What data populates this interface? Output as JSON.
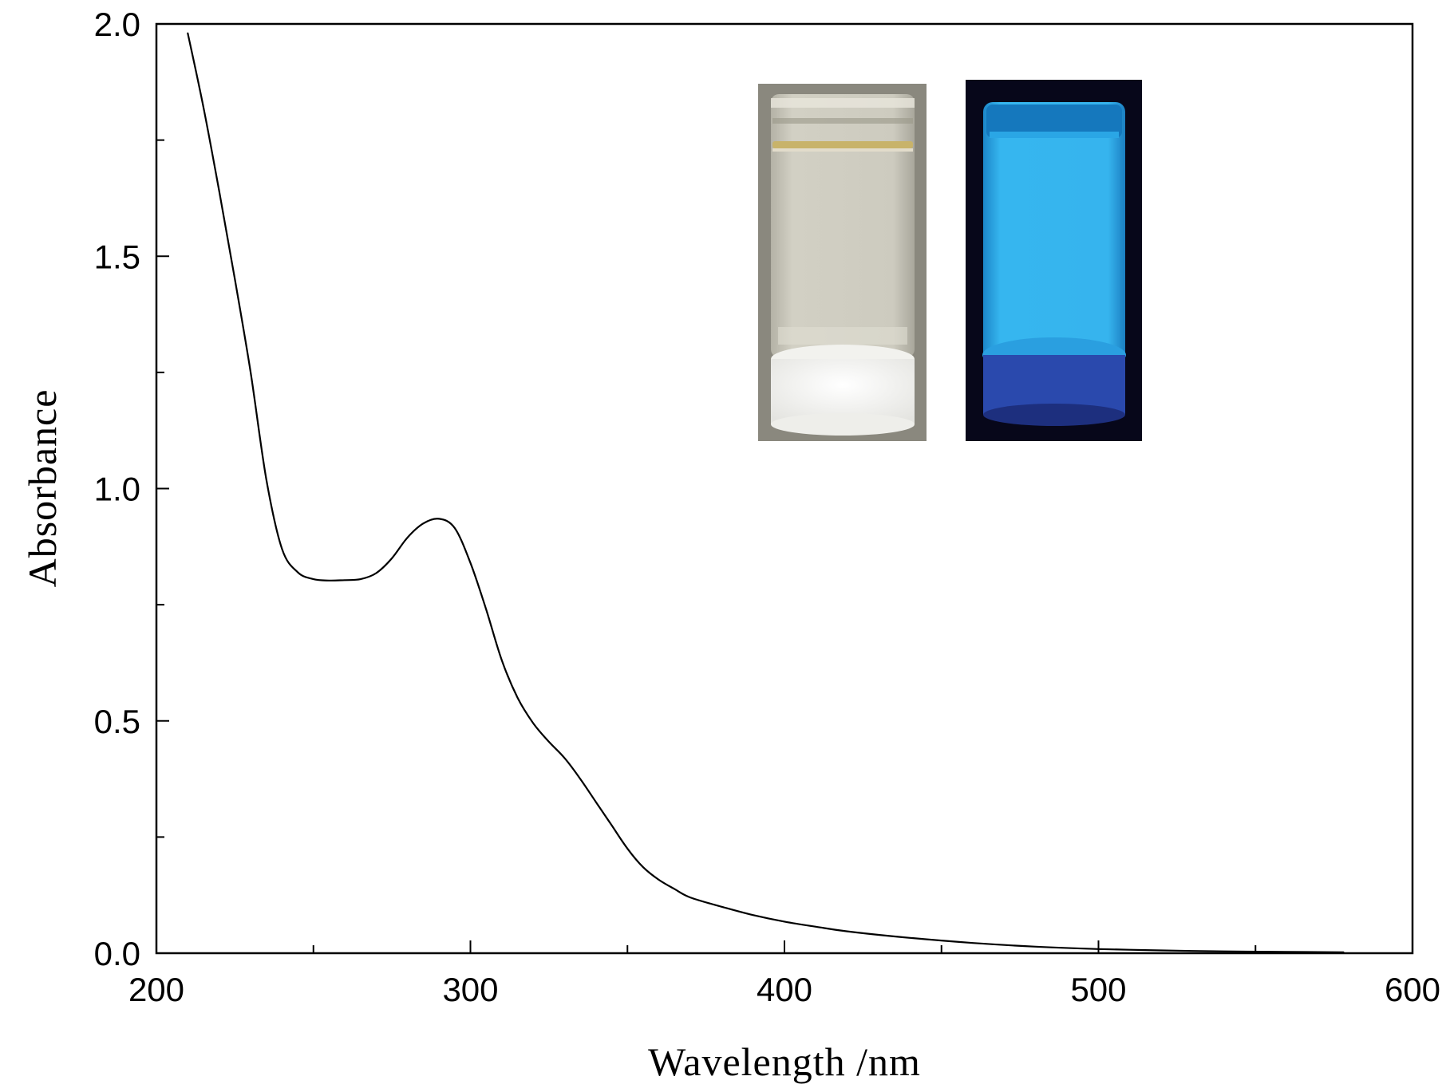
{
  "chart_data": {
    "type": "line",
    "title": "",
    "xlabel": "Wavelength /nm",
    "ylabel": "Absorbance",
    "xlim": [
      200,
      600
    ],
    "ylim": [
      0.0,
      2.0
    ],
    "x_ticks": [
      "200",
      "300",
      "400",
      "500",
      "600"
    ],
    "y_ticks": [
      "0.0",
      "0.5",
      "1.0",
      "1.5",
      "2.0"
    ],
    "x_tick_values": [
      200,
      300,
      400,
      500,
      600
    ],
    "y_tick_values": [
      0.0,
      0.5,
      1.0,
      1.5,
      2.0
    ],
    "grid": false,
    "series": [
      {
        "color": "#000000",
        "x": [
          210,
          215,
          220,
          225,
          230,
          235,
          240,
          245,
          250,
          255,
          260,
          265,
          270,
          275,
          280,
          285,
          290,
          295,
          300,
          305,
          310,
          315,
          320,
          325,
          330,
          335,
          340,
          345,
          350,
          355,
          360,
          365,
          370,
          380,
          390,
          400,
          410,
          420,
          440,
          460,
          480,
          500,
          520,
          540,
          560,
          578
        ],
        "y": [
          1.98,
          1.82,
          1.64,
          1.45,
          1.25,
          1.02,
          0.87,
          0.82,
          0.805,
          0.802,
          0.803,
          0.805,
          0.818,
          0.85,
          0.895,
          0.925,
          0.935,
          0.915,
          0.84,
          0.74,
          0.63,
          0.55,
          0.495,
          0.455,
          0.42,
          0.375,
          0.325,
          0.275,
          0.225,
          0.185,
          0.158,
          0.138,
          0.12,
          0.1,
          0.082,
          0.068,
          0.057,
          0.047,
          0.033,
          0.022,
          0.014,
          0.009,
          0.006,
          0.004,
          0.003,
          0.002
        ]
      }
    ],
    "inset_photos": [
      {
        "name": "vial-daylight",
        "colors": {
          "background": "#8c8a80",
          "glass": "#cfcdc2",
          "liquid_line": "#c9b46a",
          "powder": "#f4f4f2"
        }
      },
      {
        "name": "vial-uv",
        "colors": {
          "background": "#07071a",
          "glow": "#2fb4ee",
          "glow_core": "#47c8f6",
          "base": "#2a4fb5"
        }
      }
    ]
  }
}
